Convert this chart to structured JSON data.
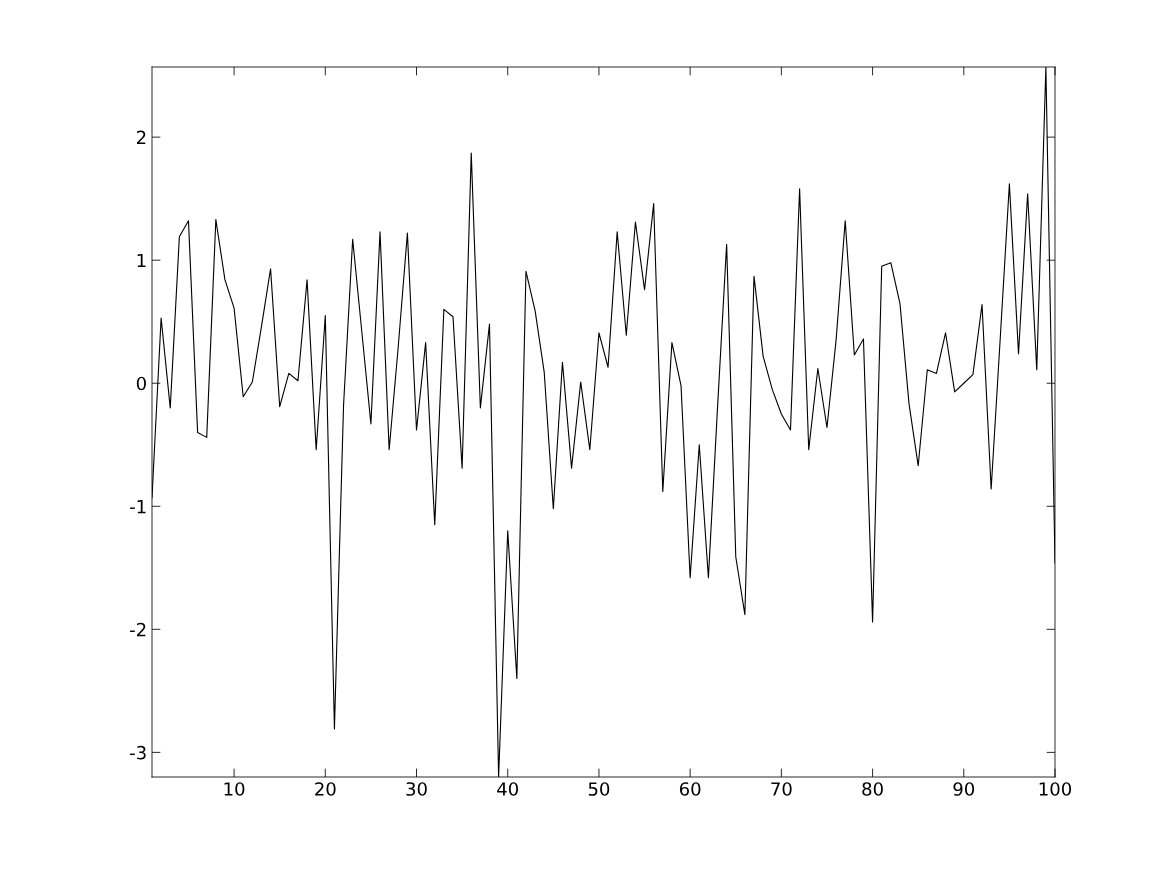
{
  "chart_data": {
    "type": "line",
    "x": [
      1,
      2,
      3,
      4,
      5,
      6,
      7,
      8,
      9,
      10,
      11,
      12,
      13,
      14,
      15,
      16,
      17,
      18,
      19,
      20,
      21,
      22,
      23,
      24,
      25,
      26,
      27,
      28,
      29,
      30,
      31,
      32,
      33,
      34,
      35,
      36,
      37,
      38,
      39,
      40,
      41,
      42,
      43,
      44,
      45,
      46,
      47,
      48,
      49,
      50,
      51,
      52,
      53,
      54,
      55,
      56,
      57,
      58,
      59,
      60,
      61,
      62,
      63,
      64,
      65,
      66,
      67,
      68,
      69,
      70,
      71,
      72,
      73,
      74,
      75,
      76,
      77,
      78,
      79,
      80,
      81,
      82,
      83,
      84,
      85,
      86,
      87,
      88,
      89,
      90,
      91,
      92,
      93,
      94,
      95,
      96,
      97,
      98,
      99,
      100
    ],
    "series": [
      {
        "color": "#000000",
        "values": [
          -0.93,
          0.53,
          -0.2,
          1.19,
          1.32,
          -0.4,
          -0.44,
          1.33,
          0.84,
          0.61,
          -0.11,
          0.01,
          0.46,
          0.93,
          -0.19,
          0.08,
          0.02,
          0.84,
          -0.54,
          0.55,
          -2.81,
          -0.18,
          1.17,
          0.42,
          -0.33,
          1.23,
          -0.54,
          0.3,
          1.22,
          -0.38,
          0.33,
          -1.15,
          0.6,
          0.54,
          -0.69,
          1.87,
          -0.2,
          0.48,
          -3.2,
          -1.2,
          -2.4,
          0.91,
          0.59,
          0.09,
          -1.02,
          0.17,
          -0.69,
          0.01,
          -0.54,
          0.41,
          0.13,
          1.23,
          0.39,
          1.31,
          0.76,
          1.46,
          -0.88,
          0.33,
          -0.02,
          -1.58,
          -0.5,
          -1.58,
          -0.2,
          1.13,
          -1.41,
          -1.88,
          0.87,
          0.22,
          -0.05,
          -0.25,
          -0.38,
          1.58,
          -0.54,
          0.12,
          -0.36,
          0.35,
          1.32,
          0.23,
          0.36,
          -1.94,
          0.95,
          0.98,
          0.65,
          -0.17,
          -0.67,
          0.11,
          0.08,
          0.41,
          -0.07,
          0.0,
          0.07,
          0.64,
          -0.86,
          0.37,
          1.62,
          0.24,
          1.54,
          0.11,
          2.57,
          -1.46
        ]
      }
    ],
    "xlim": [
      1,
      100
    ],
    "xticks": [
      10,
      20,
      30,
      40,
      50,
      60,
      70,
      80,
      90,
      100
    ],
    "ylim": [
      -3.2,
      2.57
    ],
    "yticks": [
      -3,
      -2,
      -1,
      0,
      1,
      2
    ],
    "grid": false,
    "legend": false
  }
}
